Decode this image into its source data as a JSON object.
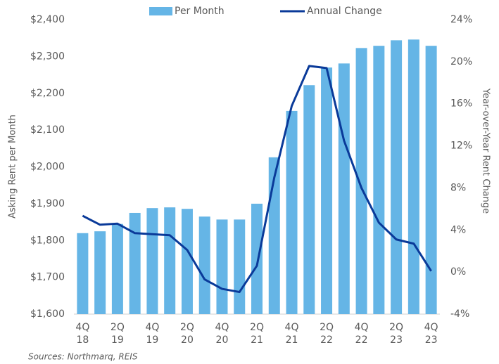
{
  "chart_data": {
    "type": "bar_line",
    "categories": [
      [
        "4Q",
        "18"
      ],
      null,
      [
        "2Q",
        "19"
      ],
      null,
      [
        "4Q",
        "19"
      ],
      null,
      [
        "2Q",
        "20"
      ],
      null,
      [
        "4Q",
        "20"
      ],
      null,
      [
        "2Q",
        "21"
      ],
      null,
      [
        "4Q",
        "21"
      ],
      null,
      [
        "2Q",
        "22"
      ],
      null,
      [
        "4Q",
        "22"
      ],
      null,
      [
        "2Q",
        "23"
      ],
      null,
      [
        "4Q",
        "23"
      ]
    ],
    "series": [
      {
        "name": "Per Month",
        "type": "bar",
        "color": "#65b5e6",
        "axis": "y",
        "values": [
          1820,
          1825,
          1845,
          1875,
          1888,
          1890,
          1886,
          1865,
          1857,
          1857,
          1900,
          2026,
          2152,
          2222,
          2270,
          2281,
          2323,
          2329,
          2344,
          2346,
          2329
        ]
      },
      {
        "name": "Annual Change",
        "type": "line",
        "color": "#0a3a99",
        "axis": "y2",
        "values": [
          5.35,
          4.5,
          4.6,
          3.7,
          3.6,
          3.5,
          2.1,
          -0.7,
          -1.6,
          -1.9,
          0.6,
          9.0,
          15.8,
          19.6,
          19.4,
          12.5,
          8.0,
          4.7,
          3.1,
          2.7,
          0.1
        ]
      }
    ],
    "ylabel": "Asking Rent per Month",
    "y2label": "Year-over-Year Rent Change",
    "ylim": [
      1600,
      2400
    ],
    "yticks": [
      {
        "value": 1600,
        "label": "$1,600"
      },
      {
        "value": 1700,
        "label": "$1,700"
      },
      {
        "value": 1800,
        "label": "$1,800"
      },
      {
        "value": 1900,
        "label": "$1,900"
      },
      {
        "value": 2000,
        "label": "$2,000"
      },
      {
        "value": 2100,
        "label": "$2,100"
      },
      {
        "value": 2200,
        "label": "$2,200"
      },
      {
        "value": 2300,
        "label": "$2,300"
      },
      {
        "value": 2400,
        "label": "$2,400"
      }
    ],
    "y2lim": [
      -4,
      24
    ],
    "y2ticks": [
      {
        "value": -4,
        "label": "-4%"
      },
      {
        "value": 0,
        "label": "0%"
      },
      {
        "value": 4,
        "label": "4%"
      },
      {
        "value": 8,
        "label": "8%"
      },
      {
        "value": 12,
        "label": "12%"
      },
      {
        "value": 16,
        "label": "16%"
      },
      {
        "value": 20,
        "label": "20%"
      },
      {
        "value": 24,
        "label": "24%"
      }
    ],
    "source": "Sources: Northmarq, REIS",
    "legend": "top"
  }
}
